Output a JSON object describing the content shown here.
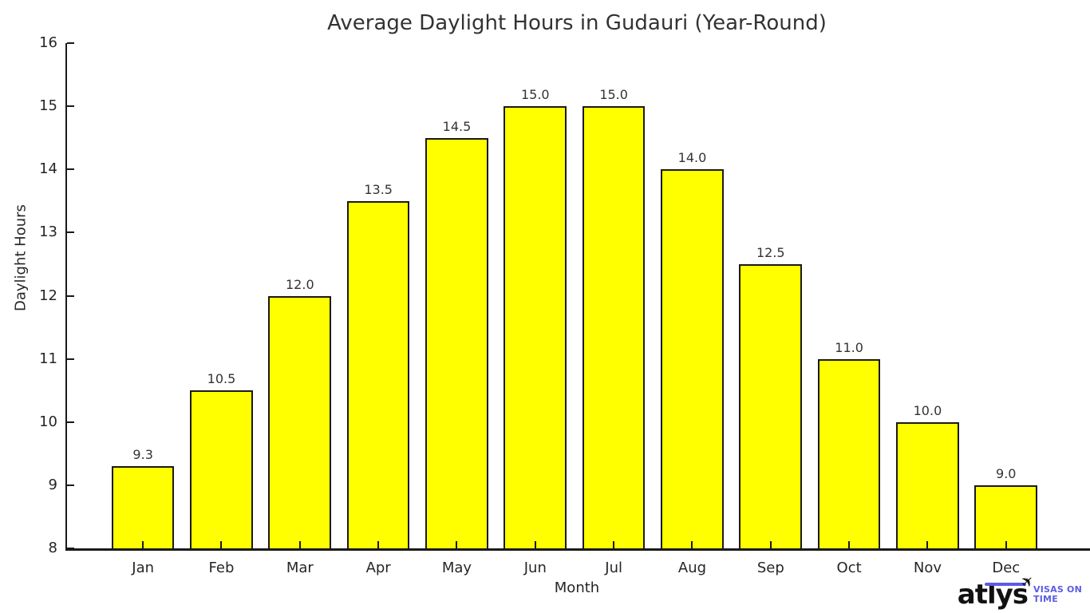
{
  "chart_data": {
    "type": "bar",
    "title": "Average Daylight Hours in Gudauri (Year-Round)",
    "xlabel": "Month",
    "ylabel": "Daylight Hours",
    "categories": [
      "Jan",
      "Feb",
      "Mar",
      "Apr",
      "May",
      "Jun",
      "Jul",
      "Aug",
      "Sep",
      "Oct",
      "Nov",
      "Dec"
    ],
    "values": [
      9.3,
      10.5,
      12.0,
      13.5,
      14.5,
      15.0,
      15.0,
      14.0,
      12.5,
      11.0,
      10.0,
      9.0
    ],
    "value_labels": [
      "9.3",
      "10.5",
      "12.0",
      "13.5",
      "14.5",
      "15.0",
      "15.0",
      "14.0",
      "12.5",
      "11.0",
      "10.0",
      "9.0"
    ],
    "ylim": [
      8,
      16
    ],
    "yticks": [
      8,
      9,
      10,
      11,
      12,
      13,
      14,
      15,
      16
    ],
    "bar_color": "#ffff00",
    "bar_edge_color": "#1a1a1a",
    "grid": false,
    "legend": null
  },
  "logo": {
    "brand": "atlys",
    "tagline_line1": "VISAS ON",
    "tagline_line2": "TIME",
    "accent_color": "#5b5ce2",
    "plane_icon": "✈"
  }
}
